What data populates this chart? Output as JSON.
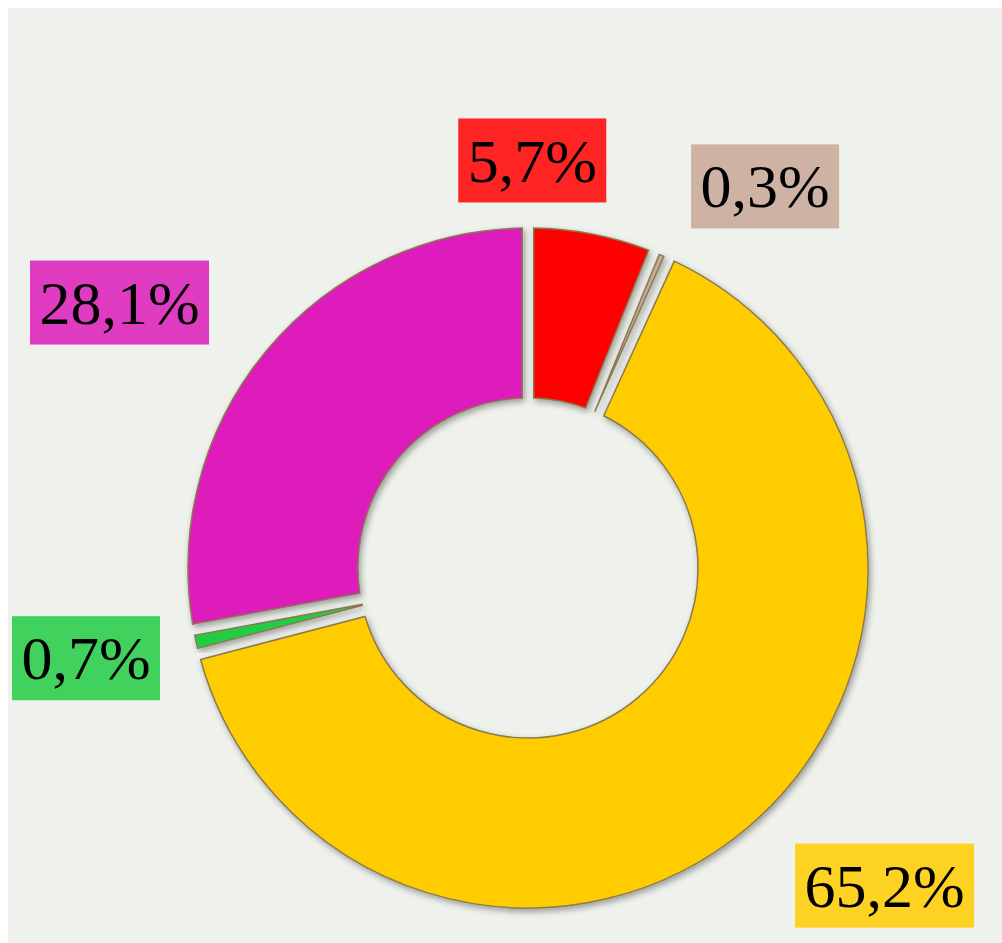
{
  "chart_data": {
    "type": "donut",
    "categories": [
      null,
      null,
      null,
      null,
      null
    ],
    "values": [
      5.7,
      0.3,
      65.2,
      0.7,
      28.1
    ],
    "value_labels": [
      "5,7%",
      "0,3%",
      "65,2%",
      "0,7%",
      "28,1%"
    ],
    "colors": [
      "#ff0000",
      "#c8a898",
      "#ffcc00",
      "#22cc44",
      "#dd1cbb"
    ],
    "legend": false
  }
}
